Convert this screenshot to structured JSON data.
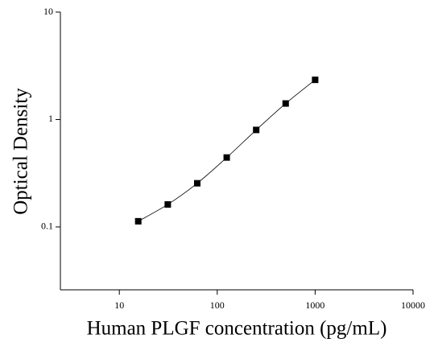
{
  "chart_data": {
    "type": "scatter",
    "x_label": "Human PLGF concentration (pg/mL)",
    "y_label": "Optical Density",
    "x": [
      15.6,
      31.25,
      62.5,
      125,
      250,
      500,
      1000
    ],
    "values": [
      0.113,
      0.162,
      0.255,
      0.443,
      0.8,
      1.41,
      2.34
    ],
    "color": "#000000",
    "xscale": "log",
    "yscale": "log",
    "xlim": [
      2.5,
      10000
    ],
    "ylim": [
      0.026,
      10
    ],
    "xticks": [
      10,
      100,
      1000,
      10000
    ],
    "yticks": [
      0.1,
      1,
      10
    ],
    "fit_line": true
  }
}
